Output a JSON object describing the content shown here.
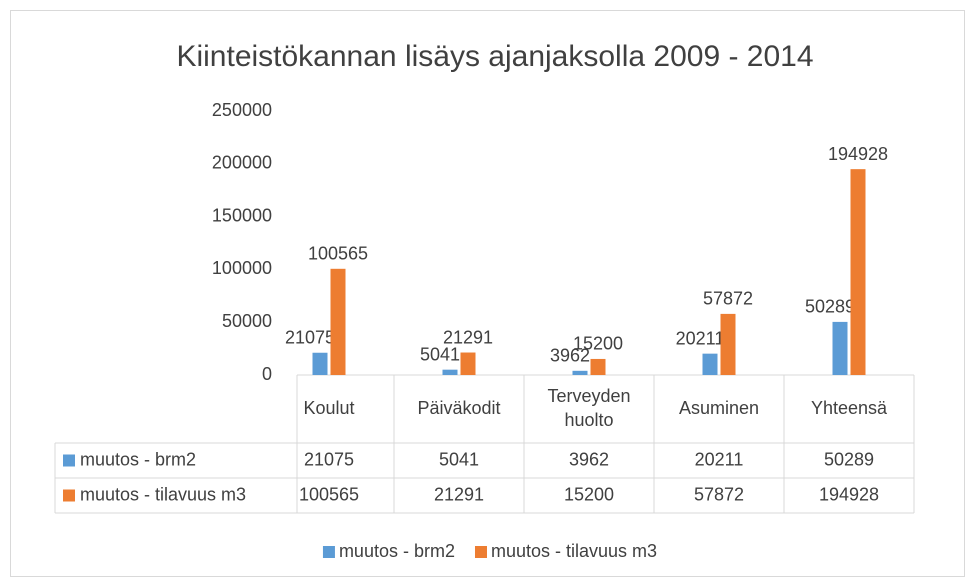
{
  "chart_data": {
    "type": "bar",
    "title": "Kiinteistökannan lisäys ajanjaksolla 2009 - 2014",
    "categories": [
      "Koulut",
      "Päiväkodit",
      "Terveyden huolto",
      "Asuminen",
      "Yhteensä"
    ],
    "series": [
      {
        "name": "muutos - brm2",
        "color": "#5b9bd5",
        "values": [
          21075,
          5041,
          3962,
          20211,
          50289
        ]
      },
      {
        "name": "muutos - tilavuus m3",
        "color": "#ed7d31",
        "values": [
          100565,
          21291,
          15200,
          57872,
          194928
        ]
      }
    ],
    "ylim": [
      0,
      250000
    ],
    "yticks": [
      0,
      50000,
      100000,
      150000,
      200000,
      250000
    ],
    "grid": false,
    "legend": "bottom",
    "data_table": true
  }
}
